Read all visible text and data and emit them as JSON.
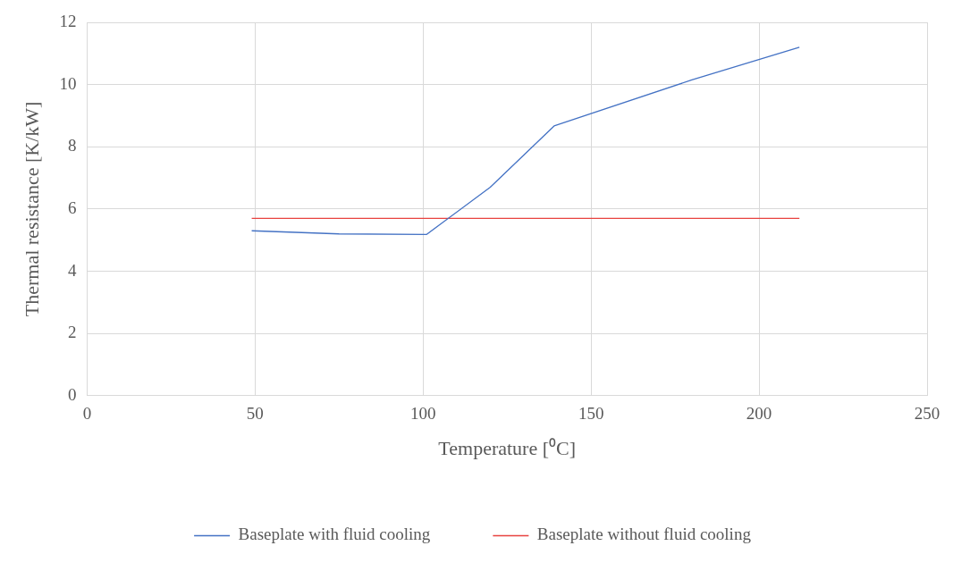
{
  "chart_data": {
    "type": "line",
    "xlabel": "Temperature [⁰C]",
    "ylabel": "Thermal resistance [K/kW]",
    "xlim": [
      0,
      250
    ],
    "xticks": [
      0,
      50,
      100,
      150,
      200,
      250
    ],
    "ylim": [
      0,
      12
    ],
    "yticks": [
      0,
      2,
      4,
      6,
      8,
      10,
      12
    ],
    "grid": true,
    "legend": "bottom",
    "marker": "none",
    "line_style": "solid",
    "series": [
      {
        "name": "Baseplate with fluid cooling",
        "color": "#4472c4",
        "x": [
          49,
          75,
          101,
          120,
          139,
          180,
          212
        ],
        "values": [
          5.3,
          5.2,
          5.18,
          6.7,
          8.67,
          10.15,
          11.2
        ]
      },
      {
        "name": "Baseplate without fluid cooling",
        "color": "#e8423f",
        "x": [
          49,
          212
        ],
        "values": [
          5.7,
          5.7
        ]
      }
    ]
  }
}
